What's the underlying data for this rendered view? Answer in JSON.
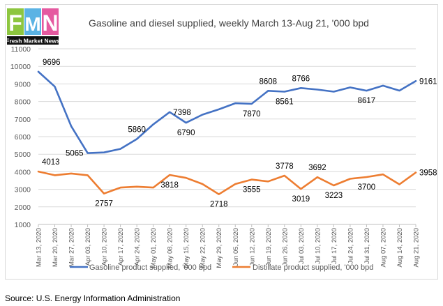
{
  "logo": {
    "letters": [
      "F",
      "M",
      "N"
    ],
    "tagline": "Fresh Market News",
    "colors": {
      "F": "#8dc63f",
      "M": "#5bb3e4",
      "N": "#e55aa0"
    }
  },
  "source": "Source: U.S. Energy Information Administration",
  "chart_data": {
    "type": "line",
    "title": "Gasoline and diesel supplied, weekly March 13-Aug 21, '000 bpd",
    "xlabel": "",
    "ylabel": "",
    "ylim": [
      1000,
      11000
    ],
    "yticks": [
      1000,
      2000,
      3000,
      4000,
      5000,
      6000,
      7000,
      8000,
      9000,
      10000,
      11000
    ],
    "grid": true,
    "legend": "bottom",
    "categories": [
      "Mar 13, 2020",
      "Mar 20, 2020",
      "Mar 27, 2020",
      "Apr 03, 2020",
      "Apr 10, 2020",
      "Apr 17, 2020",
      "Apr 24, 2020",
      "May 01, 2020",
      "May 08, 2020",
      "May 15, 2020",
      "May 22, 2020",
      "May 29, 2020",
      "Jun 05, 2020",
      "Jun 12, 2020",
      "Jun 19, 2020",
      "Jun 26, 2020",
      "Jul 03, 2020",
      "Jul 10, 2020",
      "Jul 17, 2020",
      "Jul 24, 2020",
      "Jul 31, 2020",
      "Aug 07, 2020",
      "Aug 14, 2020",
      "Aug 21, 2020"
    ],
    "series": [
      {
        "name": "Gasoline product supplied, '000 bpd",
        "color": "#4472c4",
        "values": [
          9696,
          8850,
          6600,
          5065,
          5100,
          5300,
          5860,
          6700,
          7398,
          6790,
          7250,
          7550,
          7900,
          7870,
          8608,
          8561,
          8766,
          8680,
          8560,
          8800,
          8617,
          8900,
          8620,
          9161
        ]
      },
      {
        "name": "Distillate product supplied, '000 bpd",
        "color": "#ed7d31",
        "values": [
          4013,
          3800,
          3900,
          3800,
          2757,
          3100,
          3150,
          3100,
          3818,
          3650,
          3300,
          2718,
          3300,
          3555,
          3450,
          3778,
          3019,
          3692,
          3223,
          3600,
          3700,
          3850,
          3280,
          3958
        ]
      }
    ],
    "annotations": [
      {
        "series": 0,
        "index": 0,
        "text": "9696",
        "pos": "above"
      },
      {
        "series": 0,
        "index": 3,
        "text": "5065",
        "pos": "left"
      },
      {
        "series": 0,
        "index": 6,
        "text": "5860",
        "pos": "above"
      },
      {
        "series": 0,
        "index": 8,
        "text": "7398",
        "pos": "right"
      },
      {
        "series": 0,
        "index": 9,
        "text": "6790",
        "pos": "below"
      },
      {
        "series": 0,
        "index": 13,
        "text": "7870",
        "pos": "below"
      },
      {
        "series": 0,
        "index": 14,
        "text": "8608",
        "pos": "above"
      },
      {
        "series": 0,
        "index": 15,
        "text": "8561",
        "pos": "below"
      },
      {
        "series": 0,
        "index": 16,
        "text": "8766",
        "pos": "above"
      },
      {
        "series": 0,
        "index": 20,
        "text": "8617",
        "pos": "below"
      },
      {
        "series": 0,
        "index": 23,
        "text": "9161",
        "pos": "right"
      },
      {
        "series": 1,
        "index": 0,
        "text": "4013",
        "pos": "above"
      },
      {
        "series": 1,
        "index": 4,
        "text": "2757",
        "pos": "below"
      },
      {
        "series": 1,
        "index": 8,
        "text": "3818",
        "pos": "below"
      },
      {
        "series": 1,
        "index": 11,
        "text": "2718",
        "pos": "below"
      },
      {
        "series": 1,
        "index": 13,
        "text": "3555",
        "pos": "below"
      },
      {
        "series": 1,
        "index": 15,
        "text": "3778",
        "pos": "above"
      },
      {
        "series": 1,
        "index": 16,
        "text": "3019",
        "pos": "below"
      },
      {
        "series": 1,
        "index": 17,
        "text": "3692",
        "pos": "above"
      },
      {
        "series": 1,
        "index": 18,
        "text": "3223",
        "pos": "below"
      },
      {
        "series": 1,
        "index": 20,
        "text": "3700",
        "pos": "below"
      },
      {
        "series": 1,
        "index": 23,
        "text": "3958",
        "pos": "right"
      }
    ]
  }
}
